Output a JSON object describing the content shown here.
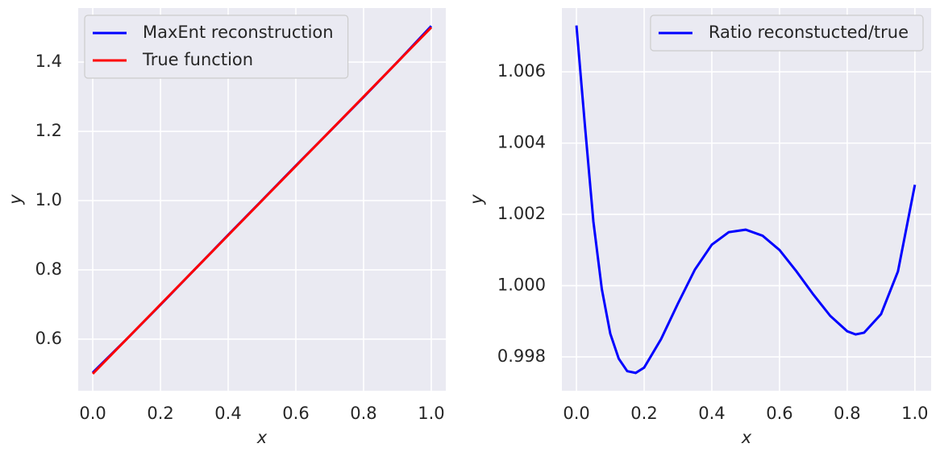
{
  "chart_data": [
    {
      "type": "line",
      "xlabel": "x",
      "ylabel": "y",
      "x": [
        0,
        0.1,
        0.2,
        0.3,
        0.4,
        0.5,
        0.6,
        0.7,
        0.8,
        0.9,
        1.0
      ],
      "series": [
        {
          "name": "MaxEnt reconstruction",
          "color": "#0000ff",
          "values": [
            0.5036,
            0.6,
            0.6992,
            0.8,
            0.9009,
            1.0008,
            1.1011,
            1.1997,
            1.2989,
            1.4002,
            1.5042
          ]
        },
        {
          "name": "True function",
          "color": "#ff0000",
          "values": [
            0.5,
            0.6,
            0.7,
            0.8,
            0.9,
            1.0,
            1.1,
            1.2,
            1.3,
            1.4,
            1.5
          ]
        }
      ],
      "xlim": [
        -0.043,
        1.043
      ],
      "ylim": [
        0.451,
        1.556
      ],
      "xticks": [
        {
          "value": 0,
          "label": "0.0"
        },
        0.2,
        0.4,
        0.6,
        0.8,
        {
          "value": 1,
          "label": "1.0"
        }
      ],
      "yticks": [
        0.6,
        0.8,
        {
          "value": 1,
          "label": "1.0"
        },
        1.2,
        1.4
      ],
      "grid": true,
      "legend": "upper left"
    },
    {
      "type": "line",
      "xlabel": "x",
      "ylabel": "y",
      "x": [
        0,
        0.025,
        0.05,
        0.075,
        0.1,
        0.125,
        0.15,
        0.175,
        0.2,
        0.25,
        0.3,
        0.35,
        0.4,
        0.45,
        0.5,
        0.55,
        0.6,
        0.65,
        0.7,
        0.75,
        0.8,
        0.825,
        0.85,
        0.9,
        0.95,
        1.0
      ],
      "series": [
        {
          "name": "Ratio reconstucted/true",
          "color": "#0000ff",
          "values": [
            1.0073,
            1.0045,
            1.0018,
            0.9999,
            0.99865,
            0.99795,
            0.9976,
            0.99755,
            0.9977,
            0.9985,
            0.9995,
            1.00045,
            1.00115,
            1.0015,
            1.00157,
            1.0014,
            1.001,
            1.0004,
            0.99975,
            0.99915,
            0.99872,
            0.99863,
            0.99868,
            0.9992,
            1.0004,
            1.00283
          ]
        }
      ],
      "xlim": [
        -0.043,
        1.048
      ],
      "ylim": [
        0.99705,
        1.00779
      ],
      "xticks": [
        {
          "value": 0,
          "label": "0.0"
        },
        0.2,
        0.4,
        0.6,
        0.8,
        {
          "value": 1,
          "label": "1.0"
        }
      ],
      "yticks": [
        0.998,
        {
          "value": 1,
          "label": "1.000"
        },
        1.002,
        1.004,
        1.006
      ],
      "grid": true,
      "legend": "upper right"
    }
  ]
}
